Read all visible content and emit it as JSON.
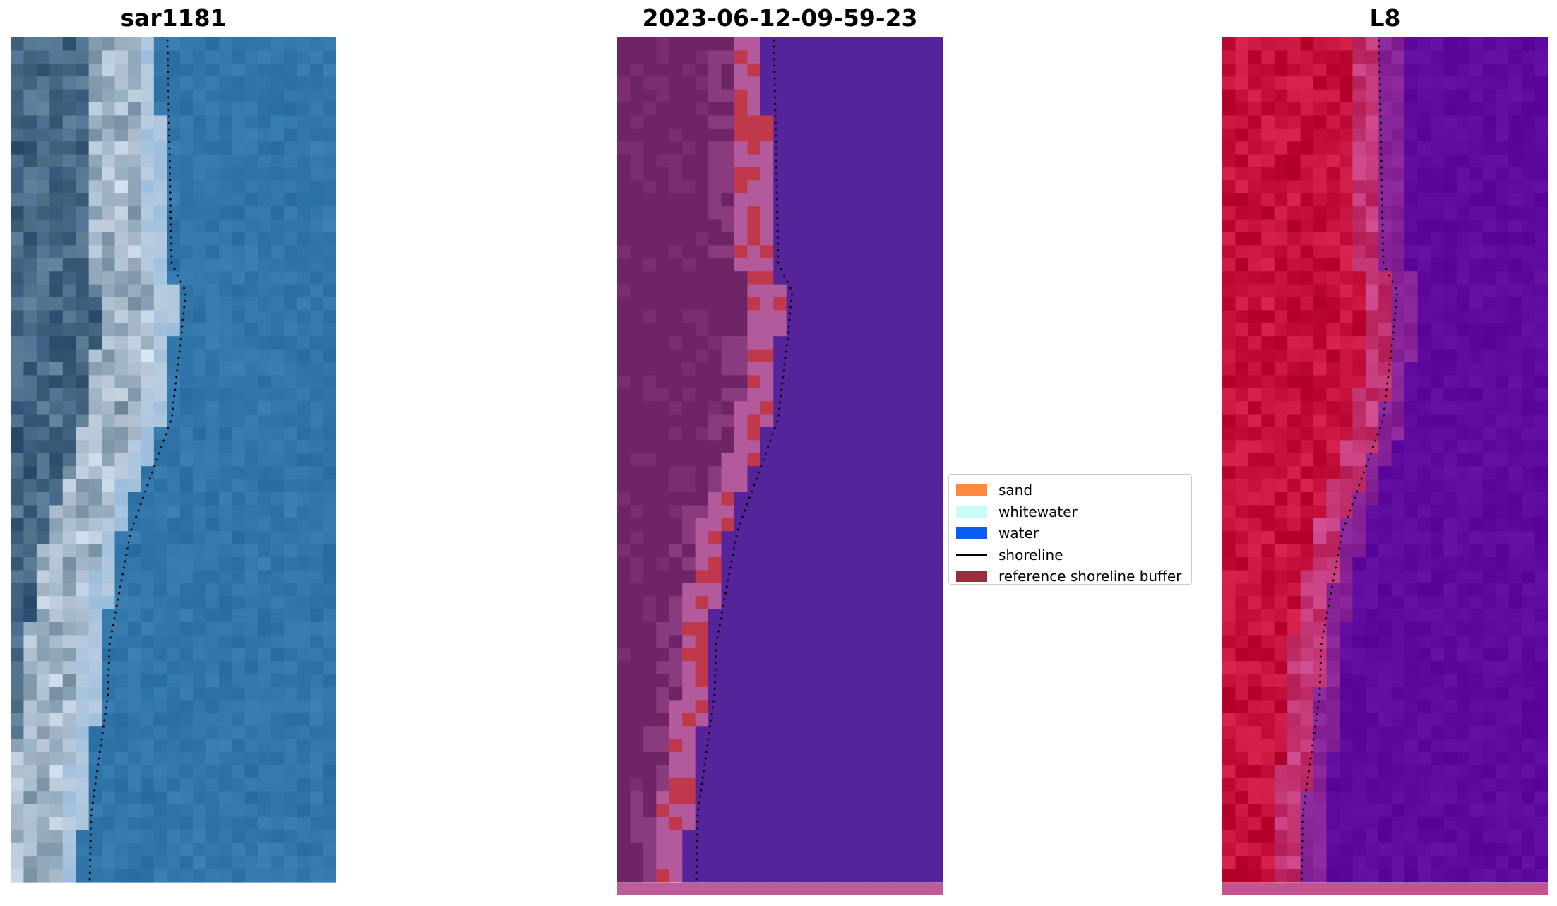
{
  "panels": [
    {
      "title": "sar1181"
    },
    {
      "title": "2023-06-12-09-59-23"
    },
    {
      "title": "L8"
    }
  ],
  "legend": {
    "items": [
      {
        "label": "sand",
        "type": "patch",
        "color": "#fb8a3e"
      },
      {
        "label": "whitewater",
        "type": "patch",
        "color": "#c9fbfb"
      },
      {
        "label": "water",
        "type": "patch",
        "color": "#0a5cf2"
      },
      {
        "label": "shoreline",
        "type": "line",
        "color": "#000000"
      },
      {
        "label": "reference shoreline buffer",
        "type": "patch",
        "color": "#962e3c"
      }
    ]
  },
  "colors": {
    "rgb_water": "#2f72a8",
    "rgb_land": "#4e6f86",
    "class_water": "#55249a",
    "class_land": "#6e2467",
    "class_sand": "#b35a9c",
    "class_buffer": "#c0384c",
    "ndwi_land": "#c5103c",
    "ndwi_water": "#5e0a9e"
  }
}
